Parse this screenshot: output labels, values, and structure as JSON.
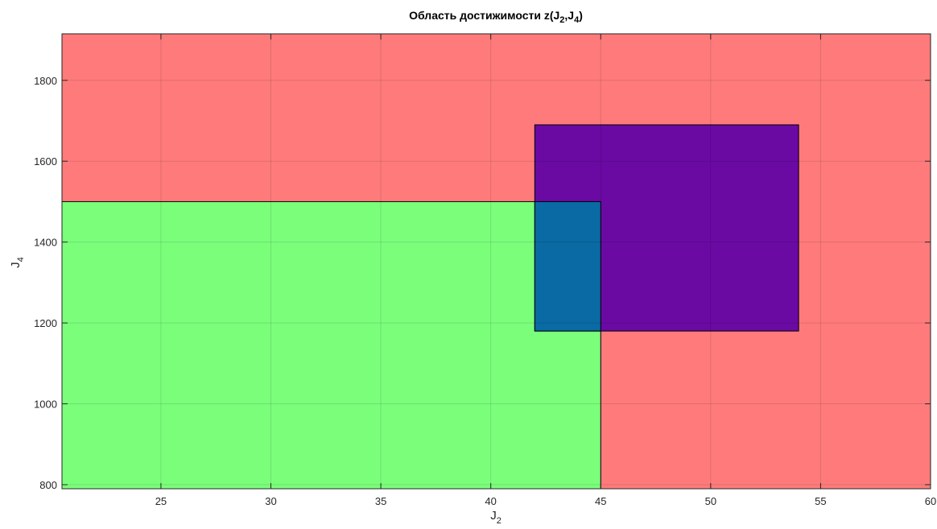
{
  "chart_data": {
    "type": "area",
    "title": {
      "prefix": "Область достижимости z(J",
      "sub1": "2",
      "mid": ",J",
      "sub2": "4",
      "suffix": ")"
    },
    "xlabel": {
      "base": "J",
      "sub": "2"
    },
    "ylabel": {
      "base": "J",
      "sub": "4"
    },
    "xlim": [
      20.5,
      60
    ],
    "ylim": [
      790,
      1915
    ],
    "xticks": [
      25,
      30,
      35,
      40,
      45,
      50,
      55,
      60
    ],
    "yticks": [
      800,
      1000,
      1200,
      1400,
      1600,
      1800
    ],
    "grid": true,
    "regions": [
      {
        "x": [
          20.5,
          60
        ],
        "y": [
          790,
          1915
        ],
        "color": "#ff7b7b"
      },
      {
        "x": [
          20.5,
          45
        ],
        "y": [
          790,
          1500
        ],
        "color": "#7bff7b"
      },
      {
        "x": [
          42,
          54
        ],
        "y": [
          1180,
          1690
        ],
        "color": "#6a0aa3"
      },
      {
        "x": [
          42,
          45
        ],
        "y": [
          1180,
          1500
        ],
        "color": "#0a6aa3"
      }
    ]
  }
}
